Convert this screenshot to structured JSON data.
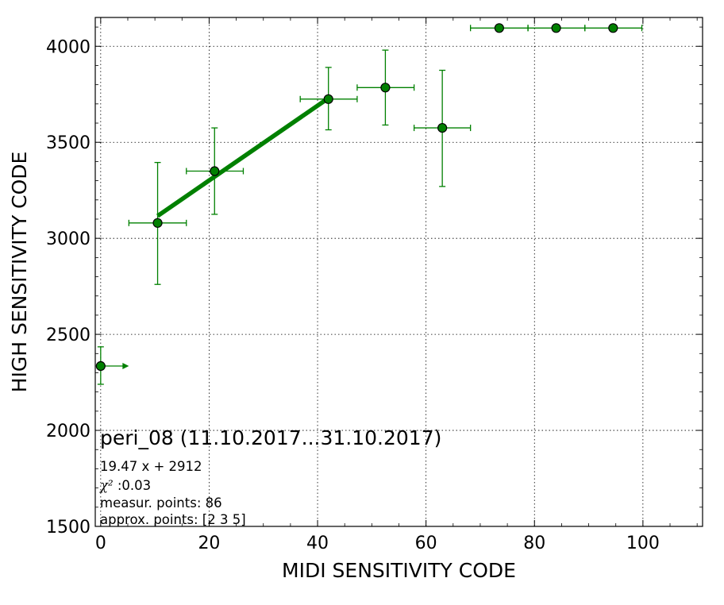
{
  "chart_data": {
    "type": "scatter",
    "title": "",
    "xlabel": "MIDI SENSITIVITY CODE",
    "ylabel": "HIGH SENSITIVITY CODE",
    "xlim": [
      -1,
      111
    ],
    "ylim": [
      1500,
      4150
    ],
    "xticks": [
      0,
      20,
      40,
      60,
      80,
      100
    ],
    "yticks": [
      1500,
      2000,
      2500,
      3000,
      3500,
      4000
    ],
    "grid": true,
    "colors": {
      "marker": "#008000",
      "marker_edge": "#000000",
      "errorbar": "#008000",
      "fit": "#008000"
    },
    "points": [
      {
        "x": 0,
        "y": 2335,
        "y_err": [
          2240,
          2435
        ],
        "x_err": [
          0,
          5.2
        ],
        "x_lower_limit": true
      },
      {
        "x": 10.5,
        "y": 3080,
        "x_err": [
          5.2,
          15.8
        ],
        "y_err": [
          2760,
          3395
        ]
      },
      {
        "x": 21,
        "y": 3350,
        "x_err": [
          15.8,
          26.3
        ],
        "y_err": [
          3125,
          3575
        ]
      },
      {
        "x": 42,
        "y": 3725,
        "x_err": [
          36.8,
          47.3
        ],
        "y_err": [
          3565,
          3890
        ]
      },
      {
        "x": 52.5,
        "y": 3785,
        "x_err": [
          47.3,
          57.8
        ],
        "y_err": [
          3590,
          3980
        ]
      },
      {
        "x": 63,
        "y": 3575,
        "x_err": [
          57.8,
          68.2
        ],
        "y_err": [
          3270,
          3875
        ]
      },
      {
        "x": 73.5,
        "y": 4095,
        "x_err": [
          68.2,
          78.8
        ],
        "y_err": [
          4095,
          4095
        ]
      },
      {
        "x": 84,
        "y": 4095,
        "x_err": [
          78.8,
          89.3
        ],
        "y_err": [
          4095,
          4095
        ]
      },
      {
        "x": 94.5,
        "y": 4095,
        "x_err": [
          89.3,
          99.8
        ],
        "y_err": [
          4095,
          4095
        ]
      }
    ],
    "fit": {
      "slope": 19.47,
      "intercept": 2912,
      "x_range": [
        10.5,
        42
      ]
    },
    "annotations": {
      "title": "peri_08 (11.10.2017...31.10.2017)",
      "equation": "19.47 x + 2912",
      "chi2": ":0.03",
      "chi2_symbol": "χ²",
      "measur_points": "measur. points: 86",
      "approx_points": "approx. points: [2 3 5]"
    }
  }
}
